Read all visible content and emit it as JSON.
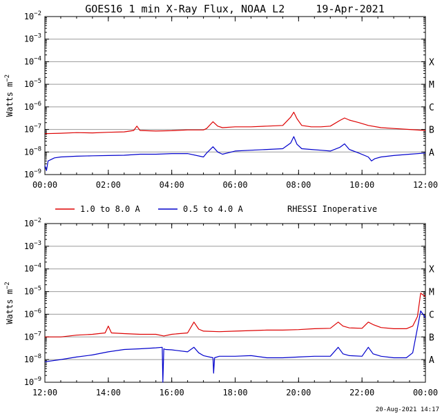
{
  "title": "GOES16 1 min X-Ray Flux, NOAA L2     19-Apr-2021",
  "footer": "20-Aug-2021 14:17",
  "legend": {
    "series_a": "1.0 to 8.0 A",
    "series_b": "0.5 to 4.0 A",
    "note": "RHESSI Inoperative"
  },
  "colors": {
    "long": "#dd0000",
    "short": "#0000cc",
    "grid": "#999999"
  },
  "chart_data": [
    {
      "type": "line",
      "title": "GOES16 1 min X-Ray Flux, NOAA L2     19-Apr-2021",
      "ylabel": "Watts m^-2",
      "xlim": [
        0,
        12
      ],
      "ylim_exp": [
        -9,
        -2
      ],
      "yscale": "log",
      "x_ticks": [
        "00:00",
        "02:00",
        "04:00",
        "06:00",
        "08:00",
        "10:00",
        "12:00"
      ],
      "y_tick_exponents": [
        -9,
        -8,
        -7,
        -6,
        -5,
        -4,
        -3,
        -2
      ],
      "flare_classes": [
        "A",
        "B",
        "C",
        "M",
        "X"
      ],
      "grid": true,
      "series": [
        {
          "name": "1.0 to 8.0 A",
          "color": "#dd0000",
          "x": [
            0,
            0.5,
            1,
            1.5,
            2,
            2.5,
            2.8,
            2.9,
            3.0,
            3.5,
            4,
            4.5,
            5,
            5.1,
            5.3,
            5.45,
            5.6,
            6,
            6.5,
            7,
            7.5,
            7.75,
            7.85,
            7.95,
            8.1,
            8.4,
            8.7,
            9,
            9.3,
            9.45,
            9.6,
            9.9,
            10.2,
            10.6,
            11,
            11.5,
            12
          ],
          "y": [
            6.5e-08,
            6.8e-08,
            7.2e-08,
            7e-08,
            7.5e-08,
            7.8e-08,
            9e-08,
            1.4e-07,
            9e-08,
            8.5e-08,
            8.8e-08,
            9.5e-08,
            9.5e-08,
            1.1e-07,
            2.2e-07,
            1.4e-07,
            1.2e-07,
            1.3e-07,
            1.3e-07,
            1.4e-07,
            1.5e-07,
            3.5e-07,
            5.8e-07,
            3e-07,
            1.5e-07,
            1.3e-07,
            1.3e-07,
            1.4e-07,
            2.5e-07,
            3.2e-07,
            2.6e-07,
            2e-07,
            1.5e-07,
            1.2e-07,
            1.1e-07,
            1e-07,
            9e-08
          ]
        },
        {
          "name": "0.5 to 4.0 A",
          "color": "#0000cc",
          "x": [
            0,
            0.05,
            0.1,
            0.3,
            0.5,
            1,
            1.5,
            2,
            2.5,
            3,
            3.5,
            4,
            4.5,
            5,
            5.1,
            5.3,
            5.45,
            5.6,
            6,
            6.5,
            7,
            7.5,
            7.75,
            7.85,
            7.95,
            8.1,
            8.4,
            8.7,
            9,
            9.3,
            9.45,
            9.6,
            9.9,
            10.2,
            10.3,
            10.4,
            10.6,
            11,
            11.5,
            12
          ],
          "y": [
            2.5e-09,
            1.5e-09,
            4e-09,
            5.5e-09,
            6e-09,
            6.5e-09,
            6.8e-09,
            7e-09,
            7.2e-09,
            8e-09,
            8e-09,
            8.5e-09,
            8.5e-09,
            6e-09,
            9e-09,
            1.7e-08,
            1e-08,
            8e-09,
            1.1e-08,
            1.2e-08,
            1.3e-08,
            1.4e-08,
            2.5e-08,
            4.8e-08,
            2.2e-08,
            1.4e-08,
            1.3e-08,
            1.2e-08,
            1.1e-08,
            1.6e-08,
            2.3e-08,
            1.3e-08,
            9e-09,
            6e-09,
            4e-09,
            5e-09,
            6e-09,
            7e-09,
            8e-09,
            9e-09
          ]
        }
      ]
    },
    {
      "type": "line",
      "ylabel": "Watts m^-2",
      "xlim": [
        12,
        24
      ],
      "ylim_exp": [
        -9,
        -2
      ],
      "yscale": "log",
      "x_ticks": [
        "12:00",
        "14:00",
        "16:00",
        "18:00",
        "20:00",
        "22:00",
        "00:00"
      ],
      "y_tick_exponents": [
        -9,
        -8,
        -7,
        -6,
        -5,
        -4,
        -3,
        -2
      ],
      "flare_classes": [
        "A",
        "B",
        "C",
        "M",
        "X"
      ],
      "grid": true,
      "series": [
        {
          "name": "1.0 to 8.0 A",
          "color": "#dd0000",
          "x": [
            12,
            12.5,
            13,
            13.5,
            13.9,
            14.0,
            14.1,
            14.5,
            15,
            15.5,
            15.75,
            16,
            16.5,
            16.7,
            16.85,
            17,
            17.5,
            18,
            18.5,
            19,
            19.5,
            20,
            20.5,
            21,
            21.25,
            21.4,
            21.6,
            22,
            22.2,
            22.35,
            22.6,
            23,
            23.4,
            23.6,
            23.75,
            23.85,
            24
          ],
          "y": [
            1e-07,
            1e-07,
            1.2e-07,
            1.3e-07,
            1.5e-07,
            3e-07,
            1.5e-07,
            1.4e-07,
            1.3e-07,
            1.3e-07,
            1.1e-07,
            1.3e-07,
            1.5e-07,
            4.5e-07,
            2.2e-07,
            1.8e-07,
            1.7e-07,
            1.8e-07,
            1.9e-07,
            2e-07,
            2e-07,
            2.1e-07,
            2.3e-07,
            2.4e-07,
            4.5e-07,
            3e-07,
            2.5e-07,
            2.4e-07,
            4.5e-07,
            3.5e-07,
            2.6e-07,
            2.3e-07,
            2.3e-07,
            3e-07,
            8e-07,
            8.5e-06,
            6e-06
          ]
        },
        {
          "name": "0.5 to 4.0 A",
          "color": "#0000cc",
          "x": [
            12,
            12.5,
            13,
            13.5,
            14,
            14.5,
            15,
            15.5,
            15.7,
            15.72,
            15.75,
            15.8,
            16,
            16.5,
            16.7,
            16.85,
            17,
            17.3,
            17.32,
            17.35,
            17.5,
            18,
            18.5,
            19,
            19.5,
            20,
            20.5,
            21,
            21.25,
            21.4,
            21.6,
            22,
            22.2,
            22.35,
            22.6,
            23,
            23.4,
            23.6,
            23.75,
            23.85,
            24
          ],
          "y": [
            8e-09,
            1e-08,
            1.3e-08,
            1.6e-08,
            2.2e-08,
            2.8e-08,
            3e-08,
            3.3e-08,
            3.5e-08,
            1e-09,
            3e-08,
            2.8e-08,
            2.7e-08,
            2.2e-08,
            3.5e-08,
            2e-08,
            1.5e-08,
            1.2e-08,
            2.5e-09,
            1.2e-08,
            1.4e-08,
            1.4e-08,
            1.5e-08,
            1.2e-08,
            1.2e-08,
            1.3e-08,
            1.4e-08,
            1.4e-08,
            3.5e-08,
            1.8e-08,
            1.5e-08,
            1.4e-08,
            3.5e-08,
            1.8e-08,
            1.4e-08,
            1.2e-08,
            1.2e-08,
            2e-08,
            2.5e-07,
            1.4e-06,
            7e-07
          ]
        }
      ]
    }
  ]
}
